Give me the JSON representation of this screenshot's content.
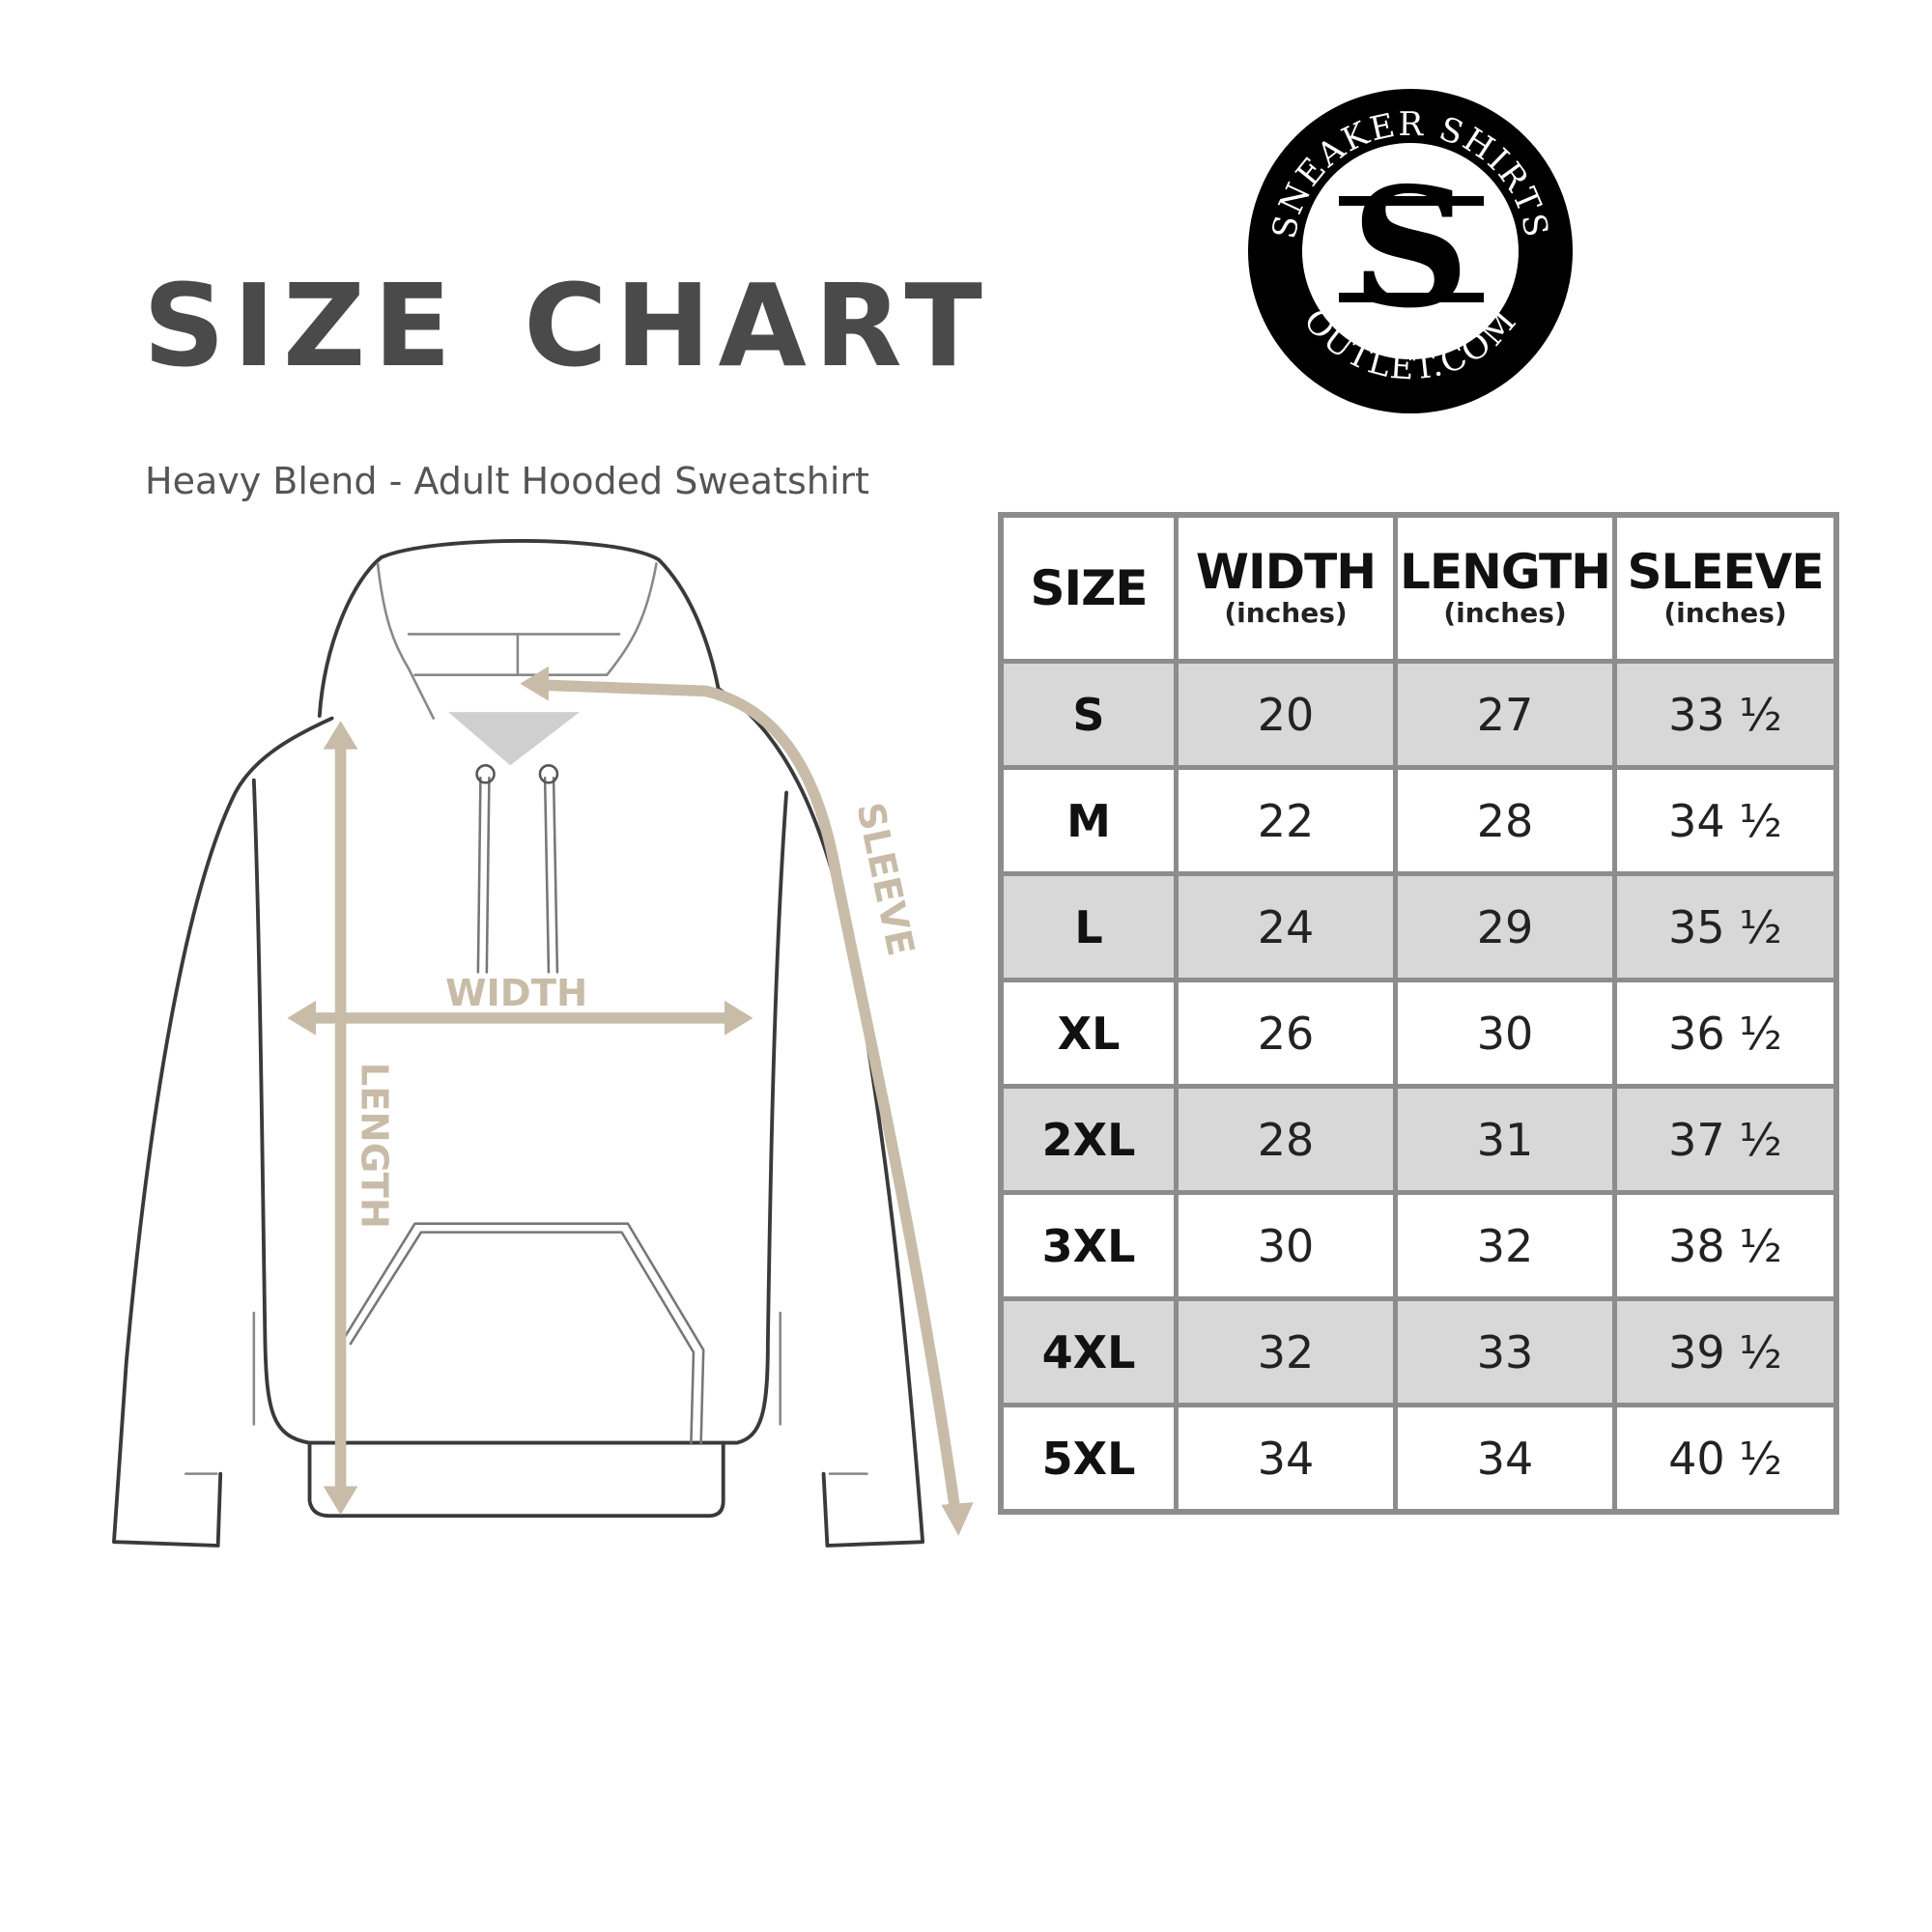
{
  "title": "SIZE CHART",
  "subtitle": "Heavy Blend - Adult Hooded Sweatshirt",
  "logo": {
    "top_text": "SNEAKER SHIRTS",
    "bottom_text": "OUTLET.COM",
    "monogram": "SS"
  },
  "diagram": {
    "width_label": "WIDTH",
    "length_label": "LENGTH",
    "sleeve_label": "SLEEVE",
    "arrow_color": "#c8bca9",
    "outline_color": "#3a3a3a"
  },
  "table": {
    "headers": [
      {
        "main": "SIZE",
        "sub": ""
      },
      {
        "main": "WIDTH",
        "sub": "(inches)"
      },
      {
        "main": "LENGTH",
        "sub": "(inches)"
      },
      {
        "main": "SLEEVE",
        "sub": "(inches)"
      }
    ],
    "rows": [
      [
        "S",
        "20",
        "27",
        "33 ½"
      ],
      [
        "M",
        "22",
        "28",
        "34 ½"
      ],
      [
        "L",
        "24",
        "29",
        "35 ½"
      ],
      [
        "XL",
        "26",
        "30",
        "36 ½"
      ],
      [
        "2XL",
        "28",
        "31",
        "37 ½"
      ],
      [
        "3XL",
        "30",
        "32",
        "38 ½"
      ],
      [
        "4XL",
        "32",
        "33",
        "39 ½"
      ],
      [
        "5XL",
        "34",
        "34",
        "40 ½"
      ]
    ],
    "shade_color": "#d8d8d8",
    "border_color": "#8c8c8c"
  }
}
